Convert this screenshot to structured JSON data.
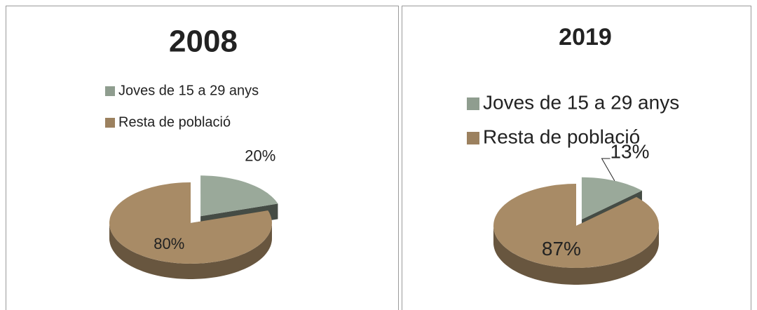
{
  "chart_data": [
    {
      "type": "pie",
      "title": "2008",
      "categories": [
        "Joves de 15 a 29 anys",
        "Resta de població"
      ],
      "values": [
        20,
        80
      ],
      "value_labels": [
        "20%",
        "80%"
      ],
      "colors": [
        "#9aa99a",
        "#a88b66"
      ],
      "legend": "top"
    },
    {
      "type": "pie",
      "title": "2019",
      "categories": [
        "Joves de 15 a 29 anys",
        "Resta de població"
      ],
      "values": [
        13,
        87
      ],
      "value_labels": [
        "13%",
        "87%"
      ],
      "colors": [
        "#9aa99a",
        "#a88b66"
      ],
      "legend": "top"
    }
  ]
}
